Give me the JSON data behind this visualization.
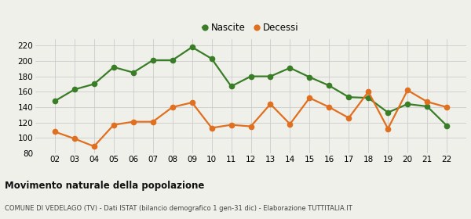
{
  "years": [
    "02",
    "03",
    "04",
    "05",
    "06",
    "07",
    "08",
    "09",
    "10",
    "11",
    "12",
    "13",
    "14",
    "15",
    "16",
    "17",
    "18",
    "19",
    "20",
    "21",
    "22"
  ],
  "nascite": [
    148,
    163,
    170,
    192,
    185,
    201,
    201,
    218,
    203,
    167,
    180,
    180,
    191,
    179,
    168,
    153,
    152,
    133,
    144,
    141,
    116
  ],
  "decessi": [
    108,
    99,
    89,
    117,
    121,
    121,
    140,
    146,
    113,
    117,
    115,
    144,
    118,
    152,
    140,
    126,
    160,
    112,
    162,
    147,
    140
  ],
  "nascite_color": "#3a7d27",
  "decessi_color": "#e07020",
  "bg_color": "#f0f0eb",
  "grid_color": "#cccccc",
  "ylim": [
    80,
    228
  ],
  "yticks": [
    80,
    100,
    120,
    140,
    160,
    180,
    200,
    220
  ],
  "title": "Movimento naturale della popolazione",
  "subtitle": "COMUNE DI VEDELAGO (TV) - Dati ISTAT (bilancio demografico 1 gen-31 dic) - Elaborazione TUTTITALIA.IT",
  "legend_nascite": "Nascite",
  "legend_decessi": "Decessi",
  "marker_size": 4.5,
  "line_width": 1.6
}
